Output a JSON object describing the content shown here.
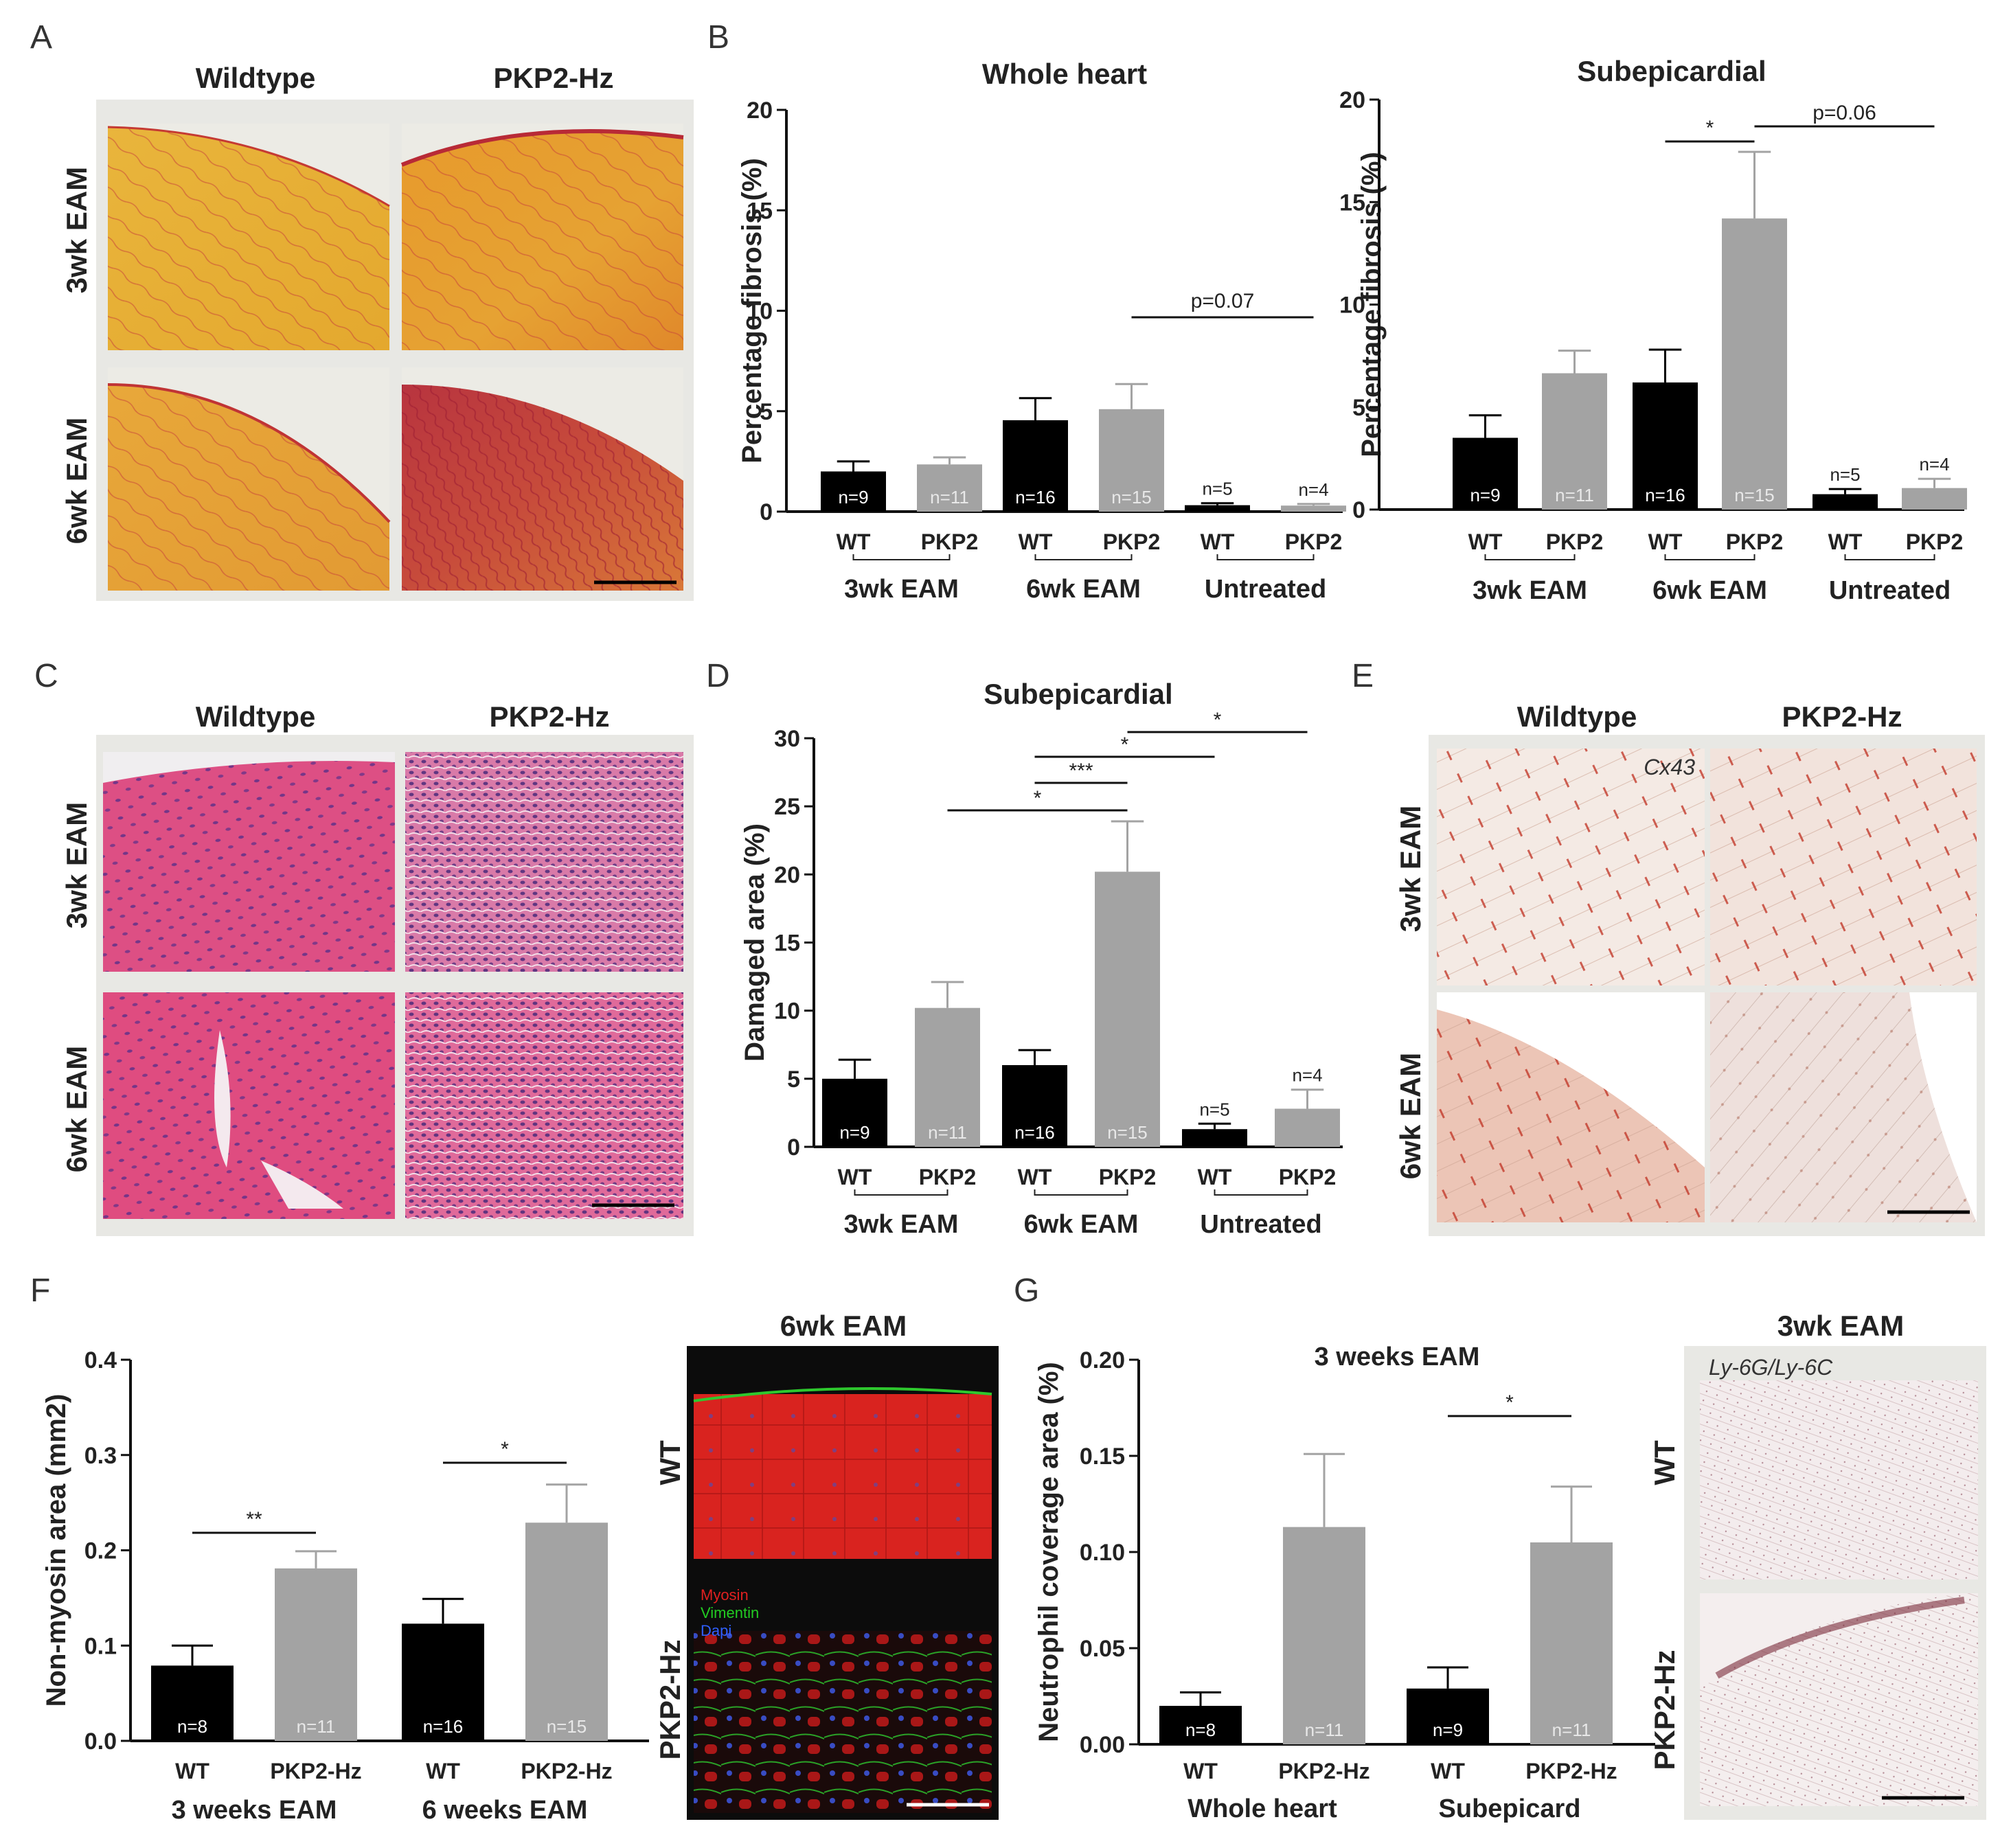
{
  "panel_letters": [
    "A",
    "B",
    "C",
    "D",
    "E",
    "F",
    "G"
  ],
  "panel_a": {
    "col_titles": [
      "Wildtype",
      "PKP2-Hz"
    ],
    "row_titles": [
      "3wk EAM",
      "6wk EAM"
    ],
    "image_desc": "picrosirius red stained heart sections"
  },
  "panel_c": {
    "col_titles": [
      "Wildtype",
      "PKP2-Hz"
    ],
    "row_titles": [
      "3wk EAM",
      "6wk EAM"
    ]
  },
  "panel_e": {
    "col_titles": [
      "Wildtype",
      "PKP2-Hz"
    ],
    "row_titles": [
      "3wk EAM",
      "6wk EAM"
    ],
    "stain_label": "Cx43"
  },
  "panel_f_image": {
    "title": "6wk EAM",
    "row_titles": [
      "WT",
      "PKP2-Hz"
    ],
    "legend": [
      {
        "label": "Myosin",
        "color": "#e02020"
      },
      {
        "label": "Vimentin",
        "color": "#22cc22"
      },
      {
        "label": "Dapi",
        "color": "#3060ff"
      }
    ]
  },
  "panel_g_image": {
    "title": "3wk EAM",
    "row_titles": [
      "WT",
      "PKP2-Hz"
    ],
    "stain_label": "Ly-6G/Ly-6C"
  },
  "colors": {
    "wt": "#000000",
    "pkp2": "#a3a3a3"
  },
  "chart_data": [
    {
      "id": "B1",
      "type": "bar",
      "title": "Whole heart",
      "ylabel": "Percentage fibrosis (%)",
      "ylim": [
        0,
        20
      ],
      "yticks": [
        "0",
        "5",
        "10",
        "15",
        "20"
      ],
      "categories": [
        "WT",
        "PKP2",
        "WT",
        "PKP2",
        "WT",
        "PKP2"
      ],
      "groups": [
        "3wk EAM",
        "6wk EAM",
        "Untreated"
      ],
      "values": [
        2.0,
        2.35,
        4.55,
        5.1,
        0.32,
        0.3
      ],
      "errors": [
        0.5,
        0.35,
        1.1,
        1.25,
        0.1,
        0.08
      ],
      "n_labels": [
        "n=9",
        "n=11",
        "n=16",
        "n=15",
        "n=5",
        "n=4"
      ],
      "n_inside": [
        true,
        true,
        true,
        true,
        false,
        false
      ],
      "significance": [
        {
          "from": 3,
          "to": 5,
          "label": "p=0.07"
        }
      ]
    },
    {
      "id": "B2",
      "type": "bar",
      "title": "Subepicardial",
      "ylabel": "Percentage fibrosis (%)",
      "ylim": [
        0,
        20
      ],
      "yticks": [
        "0",
        "5",
        "10",
        "15",
        "20"
      ],
      "categories": [
        "WT",
        "PKP2",
        "WT",
        "PKP2",
        "WT",
        "PKP2"
      ],
      "groups": [
        "3wk EAM",
        "6wk EAM",
        "Untreated"
      ],
      "values": [
        3.5,
        6.65,
        6.2,
        14.2,
        0.75,
        1.05
      ],
      "errors": [
        1.1,
        1.1,
        1.6,
        3.25,
        0.25,
        0.45
      ],
      "n_labels": [
        "n=9",
        "n=11",
        "n=16",
        "n=15",
        "n=5",
        "n=4"
      ],
      "n_inside": [
        true,
        true,
        true,
        true,
        false,
        false
      ],
      "significance": [
        {
          "from": 2,
          "to": 3,
          "label": "*"
        },
        {
          "from": 3,
          "to": 5,
          "label": "p=0.06"
        }
      ]
    },
    {
      "id": "D",
      "type": "bar",
      "title": "Subepicardial",
      "ylabel": "Damaged area (%)",
      "ylim": [
        0,
        30
      ],
      "yticks": [
        "0",
        "5",
        "10",
        "15",
        "20",
        "25",
        "30"
      ],
      "categories": [
        "WT",
        "PKP2",
        "WT",
        "PKP2",
        "WT",
        "PKP2"
      ],
      "groups": [
        "3wk EAM",
        "6wk EAM",
        "Untreated"
      ],
      "values": [
        5.0,
        10.2,
        6.0,
        20.2,
        1.3,
        2.8
      ],
      "errors": [
        1.4,
        1.9,
        1.1,
        3.7,
        0.4,
        1.4
      ],
      "n_labels": [
        "n=9",
        "n=11",
        "n=16",
        "n=15",
        "n=5",
        "n=4"
      ],
      "n_inside": [
        true,
        true,
        true,
        true,
        false,
        false
      ],
      "significance": [
        {
          "from": 1,
          "to": 3,
          "label": "*"
        },
        {
          "from": 2,
          "to": 3,
          "label": "***"
        },
        {
          "from": 2,
          "to": 4,
          "label": "*"
        },
        {
          "from": 3,
          "to": 5,
          "label": "*"
        }
      ]
    },
    {
      "id": "F",
      "type": "bar",
      "title": "",
      "ylabel": "Non-myosin area (mm2)",
      "ylim": [
        0,
        0.4
      ],
      "yticks": [
        "0.0",
        "0.1",
        "0.2",
        "0.3",
        "0.4"
      ],
      "categories": [
        "WT",
        "PKP2-Hz",
        "WT",
        "PKP2-Hz"
      ],
      "groups": [
        "3 weeks EAM",
        "6 weeks EAM"
      ],
      "values": [
        0.079,
        0.181,
        0.123,
        0.229
      ],
      "errors": [
        0.021,
        0.018,
        0.026,
        0.04
      ],
      "n_labels": [
        "n=8",
        "n=11",
        "n=16",
        "n=15"
      ],
      "n_inside": [
        true,
        true,
        true,
        true
      ],
      "significance": [
        {
          "from": 0,
          "to": 1,
          "label": "**"
        },
        {
          "from": 2,
          "to": 3,
          "label": "*"
        }
      ]
    },
    {
      "id": "G",
      "type": "bar",
      "title": "3 weeks EAM",
      "ylabel": "Neutrophil coverage area (%)",
      "ylim": [
        0,
        0.2
      ],
      "yticks": [
        "0.00",
        "0.05",
        "0.10",
        "0.15",
        "0.20"
      ],
      "categories": [
        "WT",
        "PKP2-Hz",
        "WT",
        "PKP2-Hz"
      ],
      "groups": [
        "Whole heart",
        "Subepicard"
      ],
      "values": [
        0.02,
        0.113,
        0.029,
        0.105
      ],
      "errors": [
        0.007,
        0.038,
        0.011,
        0.029
      ],
      "n_labels": [
        "n=8",
        "n=11",
        "n=9",
        "n=11"
      ],
      "n_inside": [
        true,
        true,
        true,
        true
      ],
      "significance": [
        {
          "from": 2,
          "to": 3,
          "label": "*"
        }
      ]
    }
  ]
}
